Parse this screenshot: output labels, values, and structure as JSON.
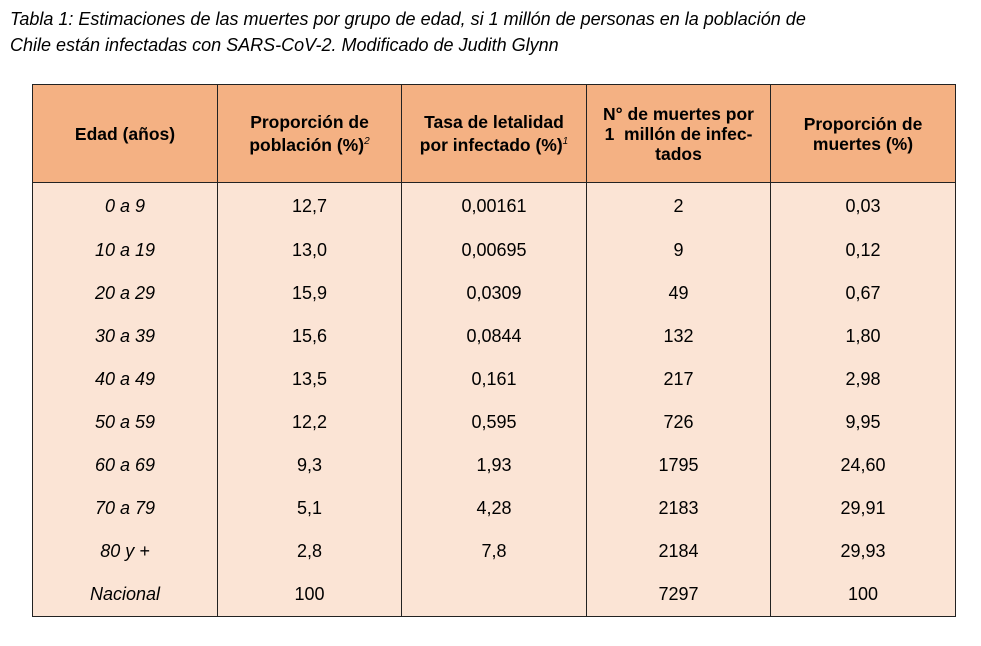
{
  "caption": {
    "line1": "Tabla 1: Estimaciones de las muertes por grupo de edad, si 1 millón de personas en la población de",
    "line2": "Chile están infectadas con SARS-CoV-2. Modificado de Judith Glynn"
  },
  "table": {
    "headers": {
      "age": {
        "line1": "Edad (años)"
      },
      "population": {
        "line1": "Proporción de",
        "line2": "población (%)",
        "sup": "2"
      },
      "lethality": {
        "line1": "Tasa de letalidad",
        "line2": "por infectado (%)",
        "sup": "1"
      },
      "deaths": {
        "line1": "N° de muertes por",
        "line2": "1  millón de infec-",
        "line3": "tados"
      },
      "death_share": {
        "line1": "Proporción de",
        "line2": "muertes (%)"
      }
    },
    "rows": [
      {
        "age": "0 a 9",
        "population": "12,7",
        "lethality": "0,00161",
        "deaths": "2",
        "death_share": "0,03"
      },
      {
        "age": "10 a 19",
        "population": "13,0",
        "lethality": "0,00695",
        "deaths": "9",
        "death_share": "0,12"
      },
      {
        "age": "20 a 29",
        "population": "15,9",
        "lethality": "0,0309",
        "deaths": "49",
        "death_share": "0,67"
      },
      {
        "age": "30 a 39",
        "population": "15,6",
        "lethality": "0,0844",
        "deaths": "132",
        "death_share": "1,80"
      },
      {
        "age": "40 a 49",
        "population": "13,5",
        "lethality": "0,161",
        "deaths": "217",
        "death_share": "2,98"
      },
      {
        "age": "50 a 59",
        "population": "12,2",
        "lethality": "0,595",
        "deaths": "726",
        "death_share": "9,95"
      },
      {
        "age": "60 a 69",
        "population": "9,3",
        "lethality": "1,93",
        "deaths": "1795",
        "death_share": "24,60"
      },
      {
        "age": "70 a 79",
        "population": "5,1",
        "lethality": "4,28",
        "deaths": "2183",
        "death_share": "29,91"
      },
      {
        "age": "80 y +",
        "population": "2,8",
        "lethality": "7,8",
        "deaths": "2184",
        "death_share": "29,93"
      },
      {
        "age": "Nacional",
        "population": "100",
        "lethality": "",
        "deaths": "7297",
        "death_share": "100"
      }
    ]
  },
  "colors": {
    "header_background": "#f4b183",
    "body_background": "#fbe4d5",
    "border": "#222222"
  }
}
